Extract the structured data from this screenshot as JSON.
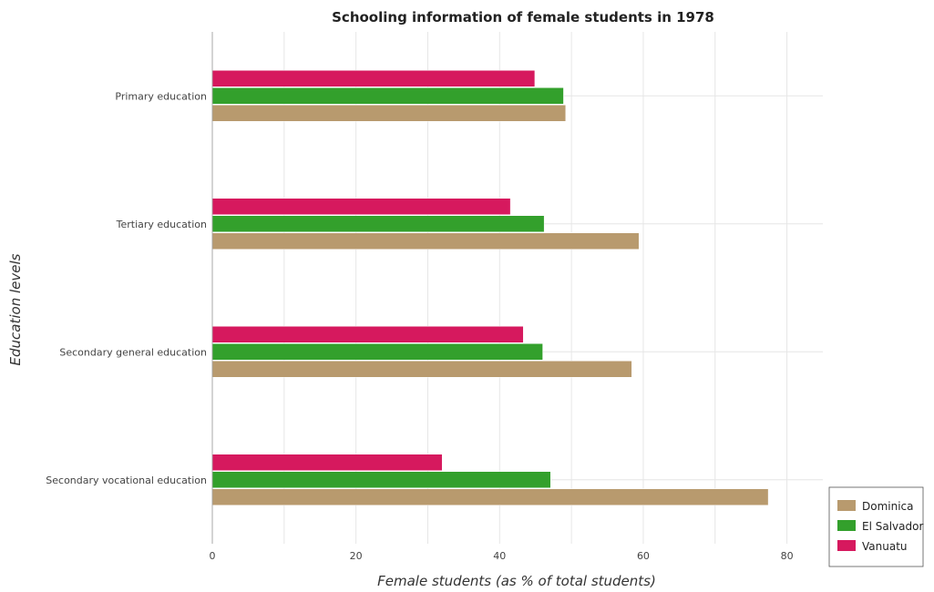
{
  "chart_data": {
    "type": "bar",
    "orientation": "horizontal",
    "title": "Schooling information of female students in 1978",
    "xlabel": "Female students (as % of total students)",
    "ylabel": "Education levels",
    "xlim": [
      0,
      85
    ],
    "xticks": [
      0,
      20,
      40,
      60,
      80
    ],
    "grid": true,
    "legend_position": "bottom-right",
    "categories": [
      "Primary education",
      "Tertiary education",
      "Secondary general education",
      "Secondary vocational education"
    ],
    "series": [
      {
        "name": "Dominica",
        "color": "#b89a6e",
        "values": [
          49.2,
          59.4,
          58.4,
          77.4
        ]
      },
      {
        "name": "El Salvador",
        "color": "#33a02c",
        "values": [
          48.9,
          46.2,
          46.0,
          47.1
        ]
      },
      {
        "name": "Vanuatu",
        "color": "#d6195e",
        "values": [
          44.9,
          41.5,
          43.3,
          32.0
        ]
      }
    ]
  }
}
